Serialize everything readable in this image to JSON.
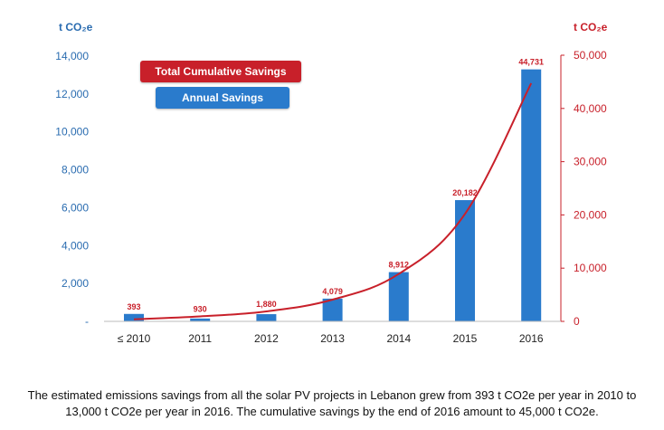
{
  "chart_data": {
    "type": "bar+line",
    "categories": [
      "≤ 2010",
      "2011",
      "2012",
      "2013",
      "2014",
      "2015",
      "2016"
    ],
    "series": [
      {
        "name": "Annual Savings",
        "type": "bar",
        "axis": "left",
        "values": [
          393,
          150,
          380,
          1200,
          2600,
          6400,
          13300
        ]
      },
      {
        "name": "Total Cumulative Savings",
        "type": "line",
        "axis": "right",
        "values": [
          393,
          930,
          1880,
          4079,
          8912,
          20182,
          44731
        ],
        "labels": [
          "393",
          "930",
          "1,880",
          "4,079",
          "8,912",
          "20,182",
          "44,731"
        ]
      }
    ],
    "left_axis": {
      "unit": "t CO₂e",
      "ylim": [
        0,
        14000
      ],
      "ticks": [
        "-",
        "2,000",
        "4,000",
        "6,000",
        "8,000",
        "10,000",
        "12,000",
        "14,000"
      ]
    },
    "right_axis": {
      "unit": "t CO₂e",
      "ylim": [
        0,
        50000
      ],
      "ticks": [
        "0",
        "10,000",
        "20,000",
        "30,000",
        "40,000",
        "50,000"
      ]
    },
    "colors": {
      "bar": "#2a7bcc",
      "line": "#c8202a",
      "axis_left": "#2a6cb0",
      "axis_right": "#c8202a",
      "x_labels": "#222222",
      "data_labels": "#c8202a"
    },
    "legend": [
      "Total Cumulative Savings",
      "Annual Savings"
    ]
  },
  "caption": {
    "line1": "The estimated emissions savings from all the solar PV projects in Lebanon grew from 393 t CO2e per year in 2010  to",
    "line2": "13,000 t CO2e per year in 2016. The cumulative savings by the end of 2016 amount to 45,000 t CO2e."
  }
}
